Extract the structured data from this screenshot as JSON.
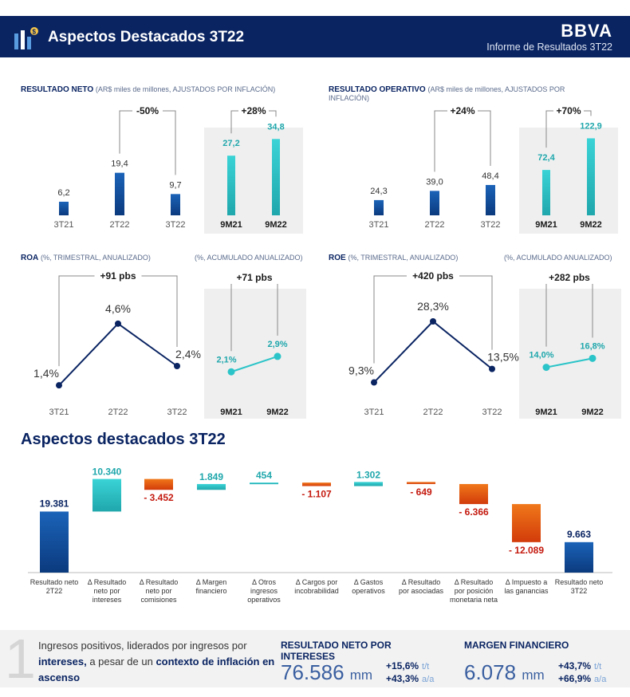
{
  "header": {
    "title": "Aspectos Destacados 3T22",
    "brand": "BBVA",
    "subtitle": "Informe de Resultados 3T22"
  },
  "colors": {
    "navy": "#0a2462",
    "blue": "#1558a5",
    "teal": "#2bc4c8",
    "red": "#e04c0c",
    "label_red": "#c4190e",
    "grey_panel": "#efefef"
  },
  "section_title": "Aspectos destacados 3T22",
  "chart_data": [
    {
      "id": "resultado-neto",
      "type": "bar",
      "title": "RESULTADO NETO",
      "subtitle": "(AR$ miles de millones, AJUSTADOS POR INFLACIÓN)",
      "categories": [
        "3T21",
        "2T22",
        "3T22"
      ],
      "values": [
        6.2,
        19.4,
        9.7
      ],
      "labels": [
        "6,2",
        "19,4",
        "9,7"
      ],
      "bracket": "-50%",
      "cum_categories": [
        "9M21",
        "9M22"
      ],
      "cum_values": [
        27.2,
        34.8
      ],
      "cum_labels": [
        "27,2",
        "34,8"
      ],
      "cum_bracket": "+28%",
      "ymax": 40
    },
    {
      "id": "resultado-operativo",
      "type": "bar",
      "title": "RESULTADO OPERATIVO",
      "subtitle": "(AR$ miles de millones, AJUSTADOS POR INFLACIÓN)",
      "categories": [
        "3T21",
        "2T22",
        "3T22"
      ],
      "values": [
        24.3,
        39.0,
        48.4
      ],
      "labels": [
        "24,3",
        "39,0",
        "48,4"
      ],
      "bracket": "+24%",
      "cum_categories": [
        "9M21",
        "9M22"
      ],
      "cum_values": [
        72.4,
        122.9
      ],
      "cum_labels": [
        "72,4",
        "122,9"
      ],
      "cum_bracket": "+70%",
      "ymax": 140
    },
    {
      "id": "roa",
      "type": "line",
      "title": "ROA",
      "subtitle": "(%, TRIMESTRAL, ANUALIZADO)",
      "cum_subtitle": "(%, ACUMULADO ANUALIZADO)",
      "categories": [
        "3T21",
        "2T22",
        "3T22"
      ],
      "values": [
        1.4,
        4.6,
        2.4
      ],
      "labels": [
        "1,4%",
        "4,6%",
        "2,4%"
      ],
      "bracket": "+91 pbs",
      "cum_categories": [
        "9M21",
        "9M22"
      ],
      "cum_values": [
        2.1,
        2.9
      ],
      "cum_labels": [
        "2,1%",
        "2,9%"
      ],
      "cum_bracket": "+71 pbs",
      "ymin": 0,
      "ymax": 6
    },
    {
      "id": "roe",
      "type": "line",
      "title": "ROE",
      "subtitle": "(%, TRIMESTRAL, ANUALIZADO)",
      "cum_subtitle": "(%, ACUMULADO ANUALIZADO)",
      "categories": [
        "3T21",
        "2T22",
        "3T22"
      ],
      "values": [
        9.3,
        28.3,
        13.5
      ],
      "labels": [
        "9,3%",
        "28,3%",
        "13,5%"
      ],
      "bracket": "+420 pbs",
      "cum_categories": [
        "9M21",
        "9M22"
      ],
      "cum_values": [
        14.0,
        16.8
      ],
      "cum_labels": [
        "14,0%",
        "16,8%"
      ],
      "cum_bracket": "+282 pbs",
      "ymin": 0,
      "ymax": 36
    },
    {
      "id": "waterfall",
      "type": "bar",
      "subtype": "waterfall",
      "title": "Aspectos destacados 3T22",
      "categories": [
        "Resultado neto 2T22",
        "Δ Resultado neto por intereses",
        "Δ Resultado neto por comisiones",
        "Δ Margen financiero",
        "Δ Otros ingresos operativos",
        "Δ Cargos por incobrabilidad",
        "Δ Gastos operativos",
        "Δ Resultado por asociadas",
        "Δ Resultado por posición monetaria neta",
        "Δ Impuesto a las ganancias",
        "Resultado neto 3T22"
      ],
      "category_lines": [
        [
          "Resultado neto",
          "2T22"
        ],
        [
          "Δ Resultado",
          "neto por",
          "intereses"
        ],
        [
          "Δ Resultado",
          "neto por",
          "comisiones"
        ],
        [
          "Δ Margen",
          "financiero"
        ],
        [
          "Δ Otros",
          "ingresos",
          "operativos"
        ],
        [
          "Δ Cargos por",
          "incobrabilidad"
        ],
        [
          "Δ Gastos",
          "operativos"
        ],
        [
          "Δ Resultado",
          "por asociadas"
        ],
        [
          "Δ Resultado",
          "por posición",
          "monetaria neta"
        ],
        [
          "Δ Impuesto a",
          "las ganancias"
        ],
        [
          "Resultado neto",
          "3T22"
        ]
      ],
      "values": [
        19381,
        10340,
        -3452,
        1849,
        454,
        -1107,
        1302,
        -649,
        -6366,
        -12089,
        9663
      ],
      "labels": [
        "19.381",
        "10.340",
        "- 3.452",
        "1.849",
        "454",
        "- 1.107",
        "1.302",
        "- 649",
        "- 6.366",
        "- 12.089",
        "9.663"
      ],
      "kinds": [
        "total",
        "delta",
        "delta",
        "delta",
        "delta",
        "delta",
        "delta",
        "delta",
        "delta",
        "delta",
        "total"
      ]
    }
  ],
  "bottom": {
    "number": "1",
    "note_plain1": "Ingresos positivos, liderados por ingresos por",
    "note_bold1": "intereses,",
    "note_plain2": " a pesar de un ",
    "note_bold2": "contexto de inflación",
    "note_bold3": "en ascenso",
    "kpi1": {
      "title_line1": "RESULTADO NETO POR",
      "title_line2": "INTERESES",
      "value": "76.586",
      "unit": "mm",
      "chg1": "+15,6%",
      "chg1_label": "t/t",
      "chg2": "+43,3%",
      "chg2_label": "a/a"
    },
    "kpi2": {
      "title": "MARGEN FINANCIERO",
      "value": "6.078",
      "unit": "mm",
      "chg1": "+43,7%",
      "chg1_label": "t/t",
      "chg2": "+66,9%",
      "chg2_label": "a/a"
    }
  }
}
